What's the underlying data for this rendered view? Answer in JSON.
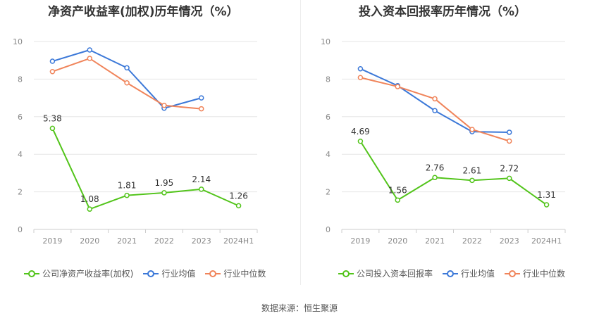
{
  "source": "数据来源：恒生聚源",
  "chart_data": [
    {
      "type": "line",
      "title": "净资产收益率(加权)历年情况（%）",
      "categories": [
        "2019",
        "2020",
        "2021",
        "2022",
        "2023",
        "2024H1"
      ],
      "ylim": [
        0,
        10
      ],
      "yticks": [
        0,
        2,
        4,
        6,
        8,
        10
      ],
      "grid": true,
      "legend_position": "bottom",
      "series": [
        {
          "name": "公司净资产收益率(加权)",
          "color": "#52c41a",
          "values": [
            5.38,
            1.08,
            1.81,
            1.95,
            2.14,
            1.26
          ],
          "labels": [
            "5.38",
            "1.08",
            "1.81",
            "1.95",
            "2.14",
            "1.26"
          ]
        },
        {
          "name": "行业均值",
          "color": "#3b78d8",
          "values": [
            8.95,
            9.55,
            8.6,
            6.45,
            7.0,
            null
          ]
        },
        {
          "name": "行业中位数",
          "color": "#f0845a",
          "values": [
            8.4,
            9.1,
            7.8,
            6.6,
            6.42,
            null
          ]
        }
      ]
    },
    {
      "type": "line",
      "title": "投入资本回报率历年情况（%）",
      "categories": [
        "2019",
        "2020",
        "2021",
        "2022",
        "2023",
        "2024H1"
      ],
      "ylim": [
        0,
        10
      ],
      "yticks": [
        0,
        2,
        4,
        6,
        8,
        10
      ],
      "grid": true,
      "legend_position": "bottom",
      "series": [
        {
          "name": "公司投入资本回报率",
          "color": "#52c41a",
          "values": [
            4.69,
            1.56,
            2.76,
            2.61,
            2.72,
            1.31
          ],
          "labels": [
            "4.69",
            "1.56",
            "2.76",
            "2.61",
            "2.72",
            "1.31"
          ]
        },
        {
          "name": "行业均值",
          "color": "#3b78d8",
          "values": [
            8.55,
            7.65,
            6.32,
            5.2,
            5.17,
            null
          ]
        },
        {
          "name": "行业中位数",
          "color": "#f0845a",
          "values": [
            8.08,
            7.6,
            6.95,
            5.32,
            4.7,
            null
          ]
        }
      ]
    }
  ]
}
